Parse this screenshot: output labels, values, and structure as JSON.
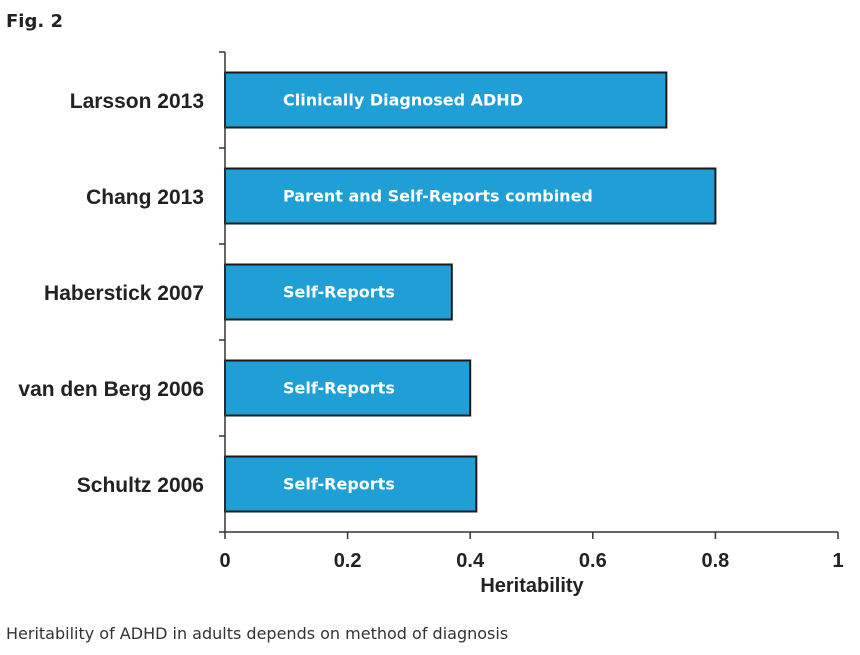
{
  "figure": {
    "label": "Fig. 2",
    "caption": "Heritability of ADHD in adults depends on method of diagnosis"
  },
  "chart_data": {
    "type": "bar",
    "orientation": "horizontal",
    "categories": [
      "Larsson 2013",
      "Chang 2013",
      "Haberstick 2007",
      "van den Berg 2006",
      "Schultz 2006"
    ],
    "values": [
      0.72,
      0.8,
      0.37,
      0.4,
      0.41
    ],
    "bar_labels": [
      "Clinically Diagnosed ADHD",
      "Parent and Self-Reports combined",
      "Self-Reports",
      "Self-Reports",
      "Self-Reports"
    ],
    "xlabel": "Heritability",
    "ylabel": "",
    "xlim": [
      0,
      1
    ],
    "xticks": [
      0,
      0.2,
      0.4,
      0.6,
      0.8,
      1
    ],
    "xtick_labels": [
      "0",
      "0.2",
      "0.4",
      "0.6",
      "0.8",
      "1"
    ],
    "grid": false,
    "bar_color": "#1f9fd5",
    "bar_edge_color": "#1a1a1a"
  }
}
